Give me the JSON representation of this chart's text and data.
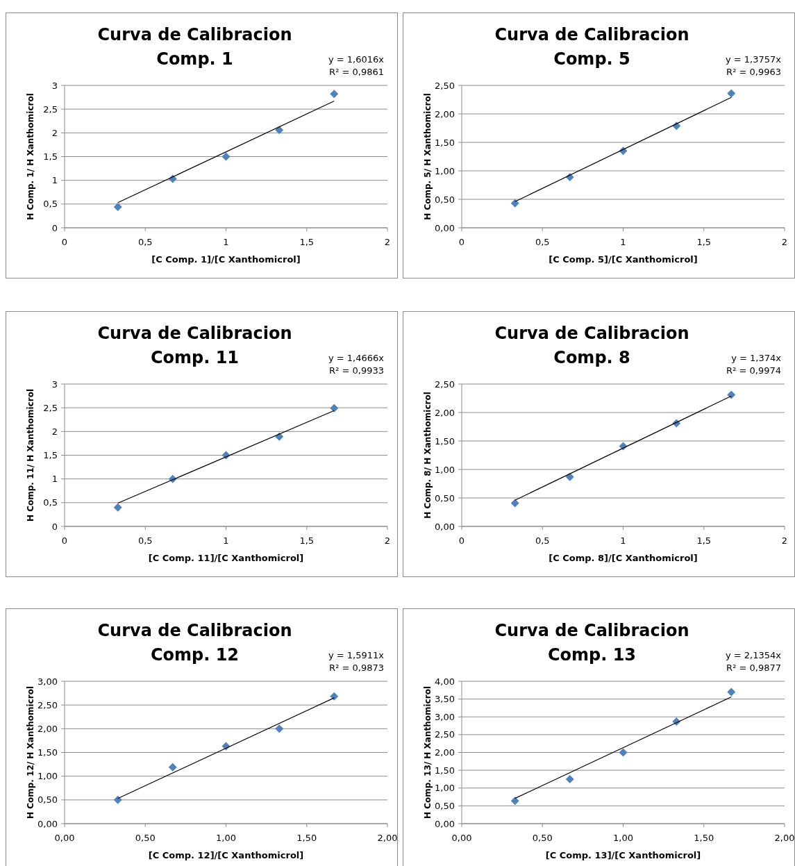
{
  "chart_data": [
    {
      "type": "scatter",
      "title": "Curva de Calibracion\nComp. 1",
      "xlabel": "[C Comp. 1]/[C Xanthomicrol]",
      "ylabel": "H Comp. 1/ H Xanthomicrol",
      "annotations": [
        "y = 1,6016x",
        "R² = 0,9861"
      ],
      "grid": "y",
      "marker": "diamond",
      "xlim": [
        0,
        2
      ],
      "xticks": [
        0,
        {
          "value": 0.5,
          "label": "0,5"
        },
        1,
        {
          "value": 1.5,
          "label": "1,5"
        },
        2
      ],
      "ylim": [
        0,
        3
      ],
      "yticks": [
        0,
        {
          "value": 0.5,
          "label": "0,5"
        },
        1,
        {
          "value": 1.5,
          "label": "1,5"
        },
        2,
        {
          "value": 2.5,
          "label": "2,5"
        },
        3
      ],
      "series": [
        {
          "type": "scatter",
          "color": "#4f81bd",
          "x": [
            0.33,
            0.67,
            1,
            1.33,
            1.67
          ],
          "values": [
            0.44,
            1.03,
            1.5,
            2.06,
            2.82
          ]
        },
        {
          "type": "line",
          "color": "#000000",
          "marker": "none",
          "x": [
            0.33,
            1.67
          ],
          "values": [
            0.53,
            2.67
          ]
        }
      ]
    },
    {
      "type": "scatter",
      "title": "Curva de Calibracion\nComp. 5",
      "xlabel": "[C Comp. 5]/[C Xanthomicrol]",
      "ylabel": "H Comp. 5/ H Xanthomicrol",
      "annotations": [
        "y = 1,3757x",
        "R² = 0,9963"
      ],
      "grid": "y",
      "marker": "diamond",
      "xlim": [
        0,
        2
      ],
      "xticks": [
        0,
        {
          "value": 0.5,
          "label": "0,5"
        },
        1,
        {
          "value": 1.5,
          "label": "1,5"
        },
        2
      ],
      "ylim": [
        0,
        2.5
      ],
      "yticks": [
        {
          "value": 0,
          "label": "0,00"
        },
        {
          "value": 0.5,
          "label": "0,50"
        },
        {
          "value": 1,
          "label": "1,00"
        },
        {
          "value": 1.5,
          "label": "1,50"
        },
        {
          "value": 2,
          "label": "2,00"
        },
        {
          "value": 2.5,
          "label": "2,50"
        }
      ],
      "series": [
        {
          "type": "scatter",
          "color": "#4f81bd",
          "x": [
            0.33,
            0.67,
            1,
            1.33,
            1.67
          ],
          "values": [
            0.43,
            0.89,
            1.35,
            1.79,
            2.36
          ]
        },
        {
          "type": "line",
          "color": "#000000",
          "marker": "none",
          "x": [
            0.33,
            1.67
          ],
          "values": [
            0.46,
            2.29
          ]
        }
      ]
    },
    {
      "type": "scatter",
      "title": "Curva de Calibracion\nComp. 11",
      "xlabel": "[C Comp. 11]/[C Xanthomicrol]",
      "ylabel": "H Comp. 11/ H Xanthomicrol",
      "annotations": [
        "y = 1,4666x",
        "R² = 0,9933"
      ],
      "grid": "y",
      "marker": "diamond",
      "xlim": [
        0,
        2
      ],
      "xticks": [
        0,
        {
          "value": 0.5,
          "label": "0,5"
        },
        1,
        {
          "value": 1.5,
          "label": "1,5"
        },
        2
      ],
      "ylim": [
        0,
        3
      ],
      "yticks": [
        0,
        {
          "value": 0.5,
          "label": "0,5"
        },
        1,
        {
          "value": 1.5,
          "label": "1,5"
        },
        2,
        {
          "value": 2.5,
          "label": "2,5"
        },
        3
      ],
      "series": [
        {
          "type": "scatter",
          "color": "#4f81bd",
          "x": [
            0.33,
            0.67,
            1,
            1.33,
            1.67
          ],
          "values": [
            0.4,
            1.0,
            1.5,
            1.89,
            2.49
          ]
        },
        {
          "type": "line",
          "color": "#000000",
          "marker": "none",
          "x": [
            0.33,
            1.67
          ],
          "values": [
            0.49,
            2.44
          ]
        }
      ]
    },
    {
      "type": "scatter",
      "title": "Curva de Calibracion\nComp. 8",
      "xlabel": "[C Comp. 8]/[C Xanthomicrol]",
      "ylabel": "H Comp. 8/ H Xanthomicrol",
      "annotations": [
        "y = 1,374x",
        "R² = 0,9974"
      ],
      "grid": "y",
      "marker": "diamond",
      "xlim": [
        0,
        2
      ],
      "xticks": [
        0,
        {
          "value": 0.5,
          "label": "0,5"
        },
        1,
        {
          "value": 1.5,
          "label": "1,5"
        },
        2
      ],
      "ylim": [
        0,
        2.5
      ],
      "yticks": [
        {
          "value": 0,
          "label": "0,00"
        },
        {
          "value": 0.5,
          "label": "0,50"
        },
        {
          "value": 1,
          "label": "1,00"
        },
        {
          "value": 1.5,
          "label": "1,50"
        },
        {
          "value": 2,
          "label": "2,00"
        },
        {
          "value": 2.5,
          "label": "2,50"
        }
      ],
      "series": [
        {
          "type": "scatter",
          "color": "#4f81bd",
          "x": [
            0.33,
            0.67,
            1,
            1.33,
            1.67
          ],
          "values": [
            0.41,
            0.87,
            1.41,
            1.81,
            2.31
          ]
        },
        {
          "type": "line",
          "color": "#000000",
          "marker": "none",
          "x": [
            0.33,
            1.67
          ],
          "values": [
            0.46,
            2.29
          ]
        }
      ]
    },
    {
      "type": "scatter",
      "title": "Curva de Calibracion\nComp. 12",
      "xlabel": "[C Comp. 12]/[C Xanthomicrol]",
      "ylabel": "H Comp. 12/ H Xanthomicrol",
      "annotations": [
        "y = 1,5911x",
        "R² = 0,9873"
      ],
      "grid": "y",
      "marker": "diamond",
      "xlim": [
        0,
        2
      ],
      "xticks": [
        {
          "value": 0,
          "label": "0,00"
        },
        {
          "value": 0.5,
          "label": "0,50"
        },
        {
          "value": 1,
          "label": "1,00"
        },
        {
          "value": 1.5,
          "label": "1,50"
        },
        {
          "value": 2,
          "label": "2,00"
        }
      ],
      "ylim": [
        0,
        3
      ],
      "yticks": [
        {
          "value": 0,
          "label": "0,00"
        },
        {
          "value": 0.5,
          "label": "0,50"
        },
        {
          "value": 1,
          "label": "1,00"
        },
        {
          "value": 1.5,
          "label": "1,50"
        },
        {
          "value": 2,
          "label": "2,00"
        },
        {
          "value": 2.5,
          "label": "2,50"
        },
        {
          "value": 3,
          "label": "3,00"
        }
      ],
      "series": [
        {
          "type": "scatter",
          "color": "#4f81bd",
          "x": [
            0.33,
            0.67,
            1,
            1.33,
            1.67
          ],
          "values": [
            0.5,
            1.19,
            1.63,
            2.0,
            2.68
          ]
        },
        {
          "type": "line",
          "color": "#000000",
          "marker": "none",
          "x": [
            0.33,
            1.67
          ],
          "values": [
            0.53,
            2.65
          ]
        }
      ]
    },
    {
      "type": "scatter",
      "title": "Curva de Calibracion\nComp. 13",
      "xlabel": "[C Comp. 13]/[C Xanthomicrol]",
      "ylabel": "H Comp. 13/ H Xanthomicrol",
      "annotations": [
        "y = 2,1354x",
        "R² = 0,9877"
      ],
      "grid": "y",
      "marker": "diamond",
      "xlim": [
        0,
        2
      ],
      "xticks": [
        {
          "value": 0,
          "label": "0,00"
        },
        {
          "value": 0.5,
          "label": "0,50"
        },
        {
          "value": 1,
          "label": "1,00"
        },
        {
          "value": 1.5,
          "label": "1,50"
        },
        {
          "value": 2,
          "label": "2,00"
        }
      ],
      "ylim": [
        0,
        4
      ],
      "yticks": [
        {
          "value": 0,
          "label": "0,00"
        },
        {
          "value": 0.5,
          "label": "0,50"
        },
        {
          "value": 1,
          "label": "1,00"
        },
        {
          "value": 1.5,
          "label": "1,50"
        },
        {
          "value": 2,
          "label": "2,00"
        },
        {
          "value": 2.5,
          "label": "2,50"
        },
        {
          "value": 3,
          "label": "3,00"
        },
        {
          "value": 3.5,
          "label": "3,50"
        },
        {
          "value": 4,
          "label": "4,00"
        }
      ],
      "series": [
        {
          "type": "scatter",
          "color": "#4f81bd",
          "x": [
            0.33,
            0.67,
            1,
            1.33,
            1.67
          ],
          "values": [
            0.64,
            1.25,
            2.0,
            2.87,
            3.7
          ]
        },
        {
          "type": "line",
          "color": "#000000",
          "marker": "none",
          "x": [
            0.33,
            1.67
          ],
          "values": [
            0.71,
            3.56
          ]
        }
      ]
    }
  ]
}
